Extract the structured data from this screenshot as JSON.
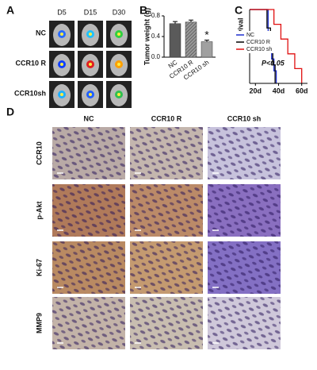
{
  "figure": {
    "panel_labels": [
      "A",
      "B",
      "C",
      "D"
    ],
    "a_columns": [
      "D5",
      "D15",
      "D30"
    ],
    "a_rows": [
      "NC",
      "CCR10 R",
      "CCR10sh"
    ],
    "d_columns": [
      "NC",
      "CCR10 R",
      "CCR10 sh"
    ],
    "d_rows": [
      "CCR10",
      "p-Akt",
      "Ki-67",
      "MMP9"
    ]
  },
  "chart_data": [
    {
      "type": "bar",
      "y_label": "Tumor weight (g)",
      "categories": [
        "NC",
        "CCR10 R",
        "CCR10 sh"
      ],
      "values": [
        0.65,
        0.68,
        0.3
      ],
      "errors": [
        0.04,
        0.04,
        0.03
      ],
      "color": "#7a7a7a",
      "ylim": [
        0,
        0.8
      ],
      "yticks": [
        {
          "value": 0,
          "label": "0.0"
        },
        {
          "value": 0.4,
          "label": "0.4"
        },
        {
          "value": 0.8,
          "label": "0.8"
        }
      ],
      "annotation": "*"
    },
    {
      "type": "line",
      "y_label": "Survival",
      "annotation": "P<0.05",
      "xlim": [
        15,
        65
      ],
      "ylim": [
        0,
        1
      ],
      "xticks": [
        {
          "value": 20,
          "label": "20d"
        },
        {
          "value": 40,
          "label": "40d"
        },
        {
          "value": 60,
          "label": "60d"
        }
      ],
      "series": [
        {
          "name": "NC",
          "color": "#1f2fd0",
          "x": [
            15,
            31,
            31,
            34,
            34,
            36,
            36,
            38,
            38
          ],
          "values": [
            1,
            1,
            0.67,
            0.67,
            0.33,
            0.33,
            0.17,
            0.17,
            0
          ]
        },
        {
          "name": "CCR10 R",
          "color": "#000000",
          "x": [
            15,
            30,
            30,
            33,
            33,
            35,
            35,
            37,
            37
          ],
          "values": [
            1,
            1,
            0.75,
            0.75,
            0.5,
            0.5,
            0.25,
            0.25,
            0
          ]
        },
        {
          "name": "CCR10 sh",
          "color": "#e01010",
          "x": [
            15,
            36,
            36,
            42,
            42,
            48,
            48,
            54,
            54,
            60,
            60
          ],
          "values": [
            1,
            1,
            0.8,
            0.8,
            0.6,
            0.6,
            0.4,
            0.4,
            0.2,
            0.2,
            0
          ]
        }
      ]
    }
  ]
}
